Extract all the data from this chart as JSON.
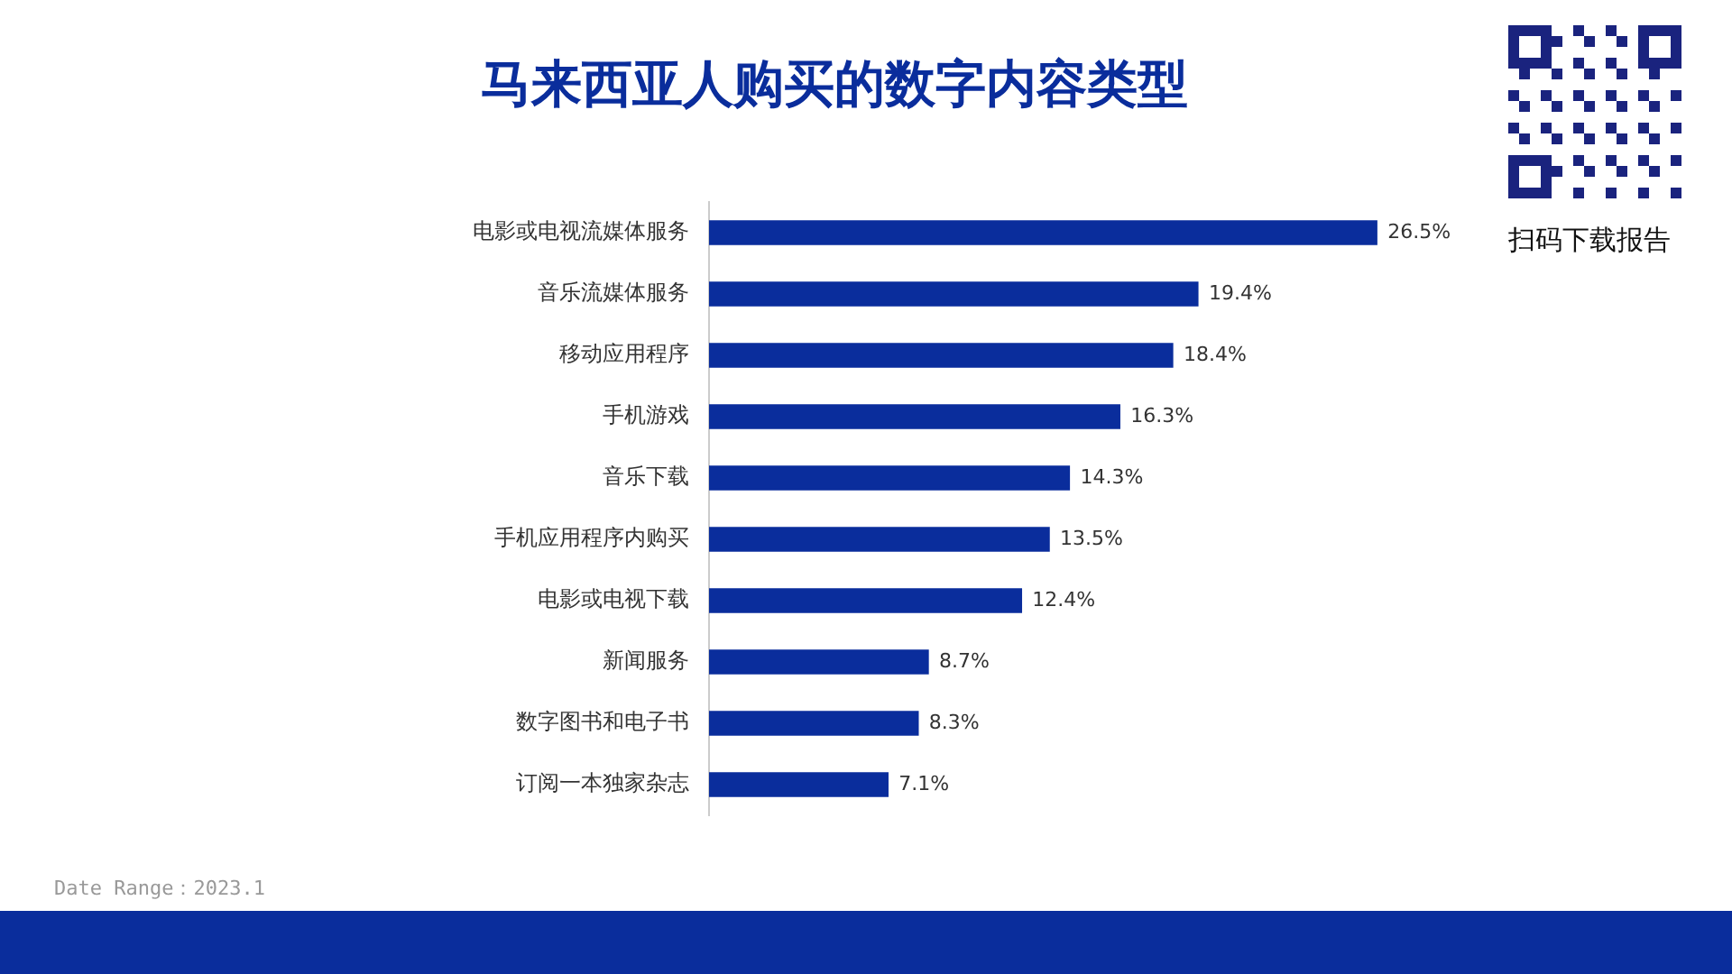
{
  "chart_data": {
    "type": "bar",
    "orientation": "horizontal",
    "title": "马来西亚人购买的数字内容类型",
    "categories": [
      "电影或电视流媒体服务",
      "音乐流媒体服务",
      "移动应用程序",
      "手机游戏",
      "音乐下载",
      "手机应用程序内购买",
      "电影或电视下载",
      "新闻服务",
      "数字图书和电子书",
      "订阅一本独家杂志"
    ],
    "values": [
      26.5,
      19.4,
      18.4,
      16.3,
      14.3,
      13.5,
      12.4,
      8.7,
      8.3,
      7.1
    ],
    "value_labels": [
      "26.5%",
      "19.4%",
      "18.4%",
      "16.3%",
      "14.3%",
      "13.5%",
      "12.4%",
      "8.7%",
      "8.3%",
      "7.1%"
    ],
    "color": "#0a2d9c",
    "tick_labels": "y",
    "legend": false,
    "annotations": [
      "扫码下载报告",
      "Date Range：2023.1"
    ]
  }
}
